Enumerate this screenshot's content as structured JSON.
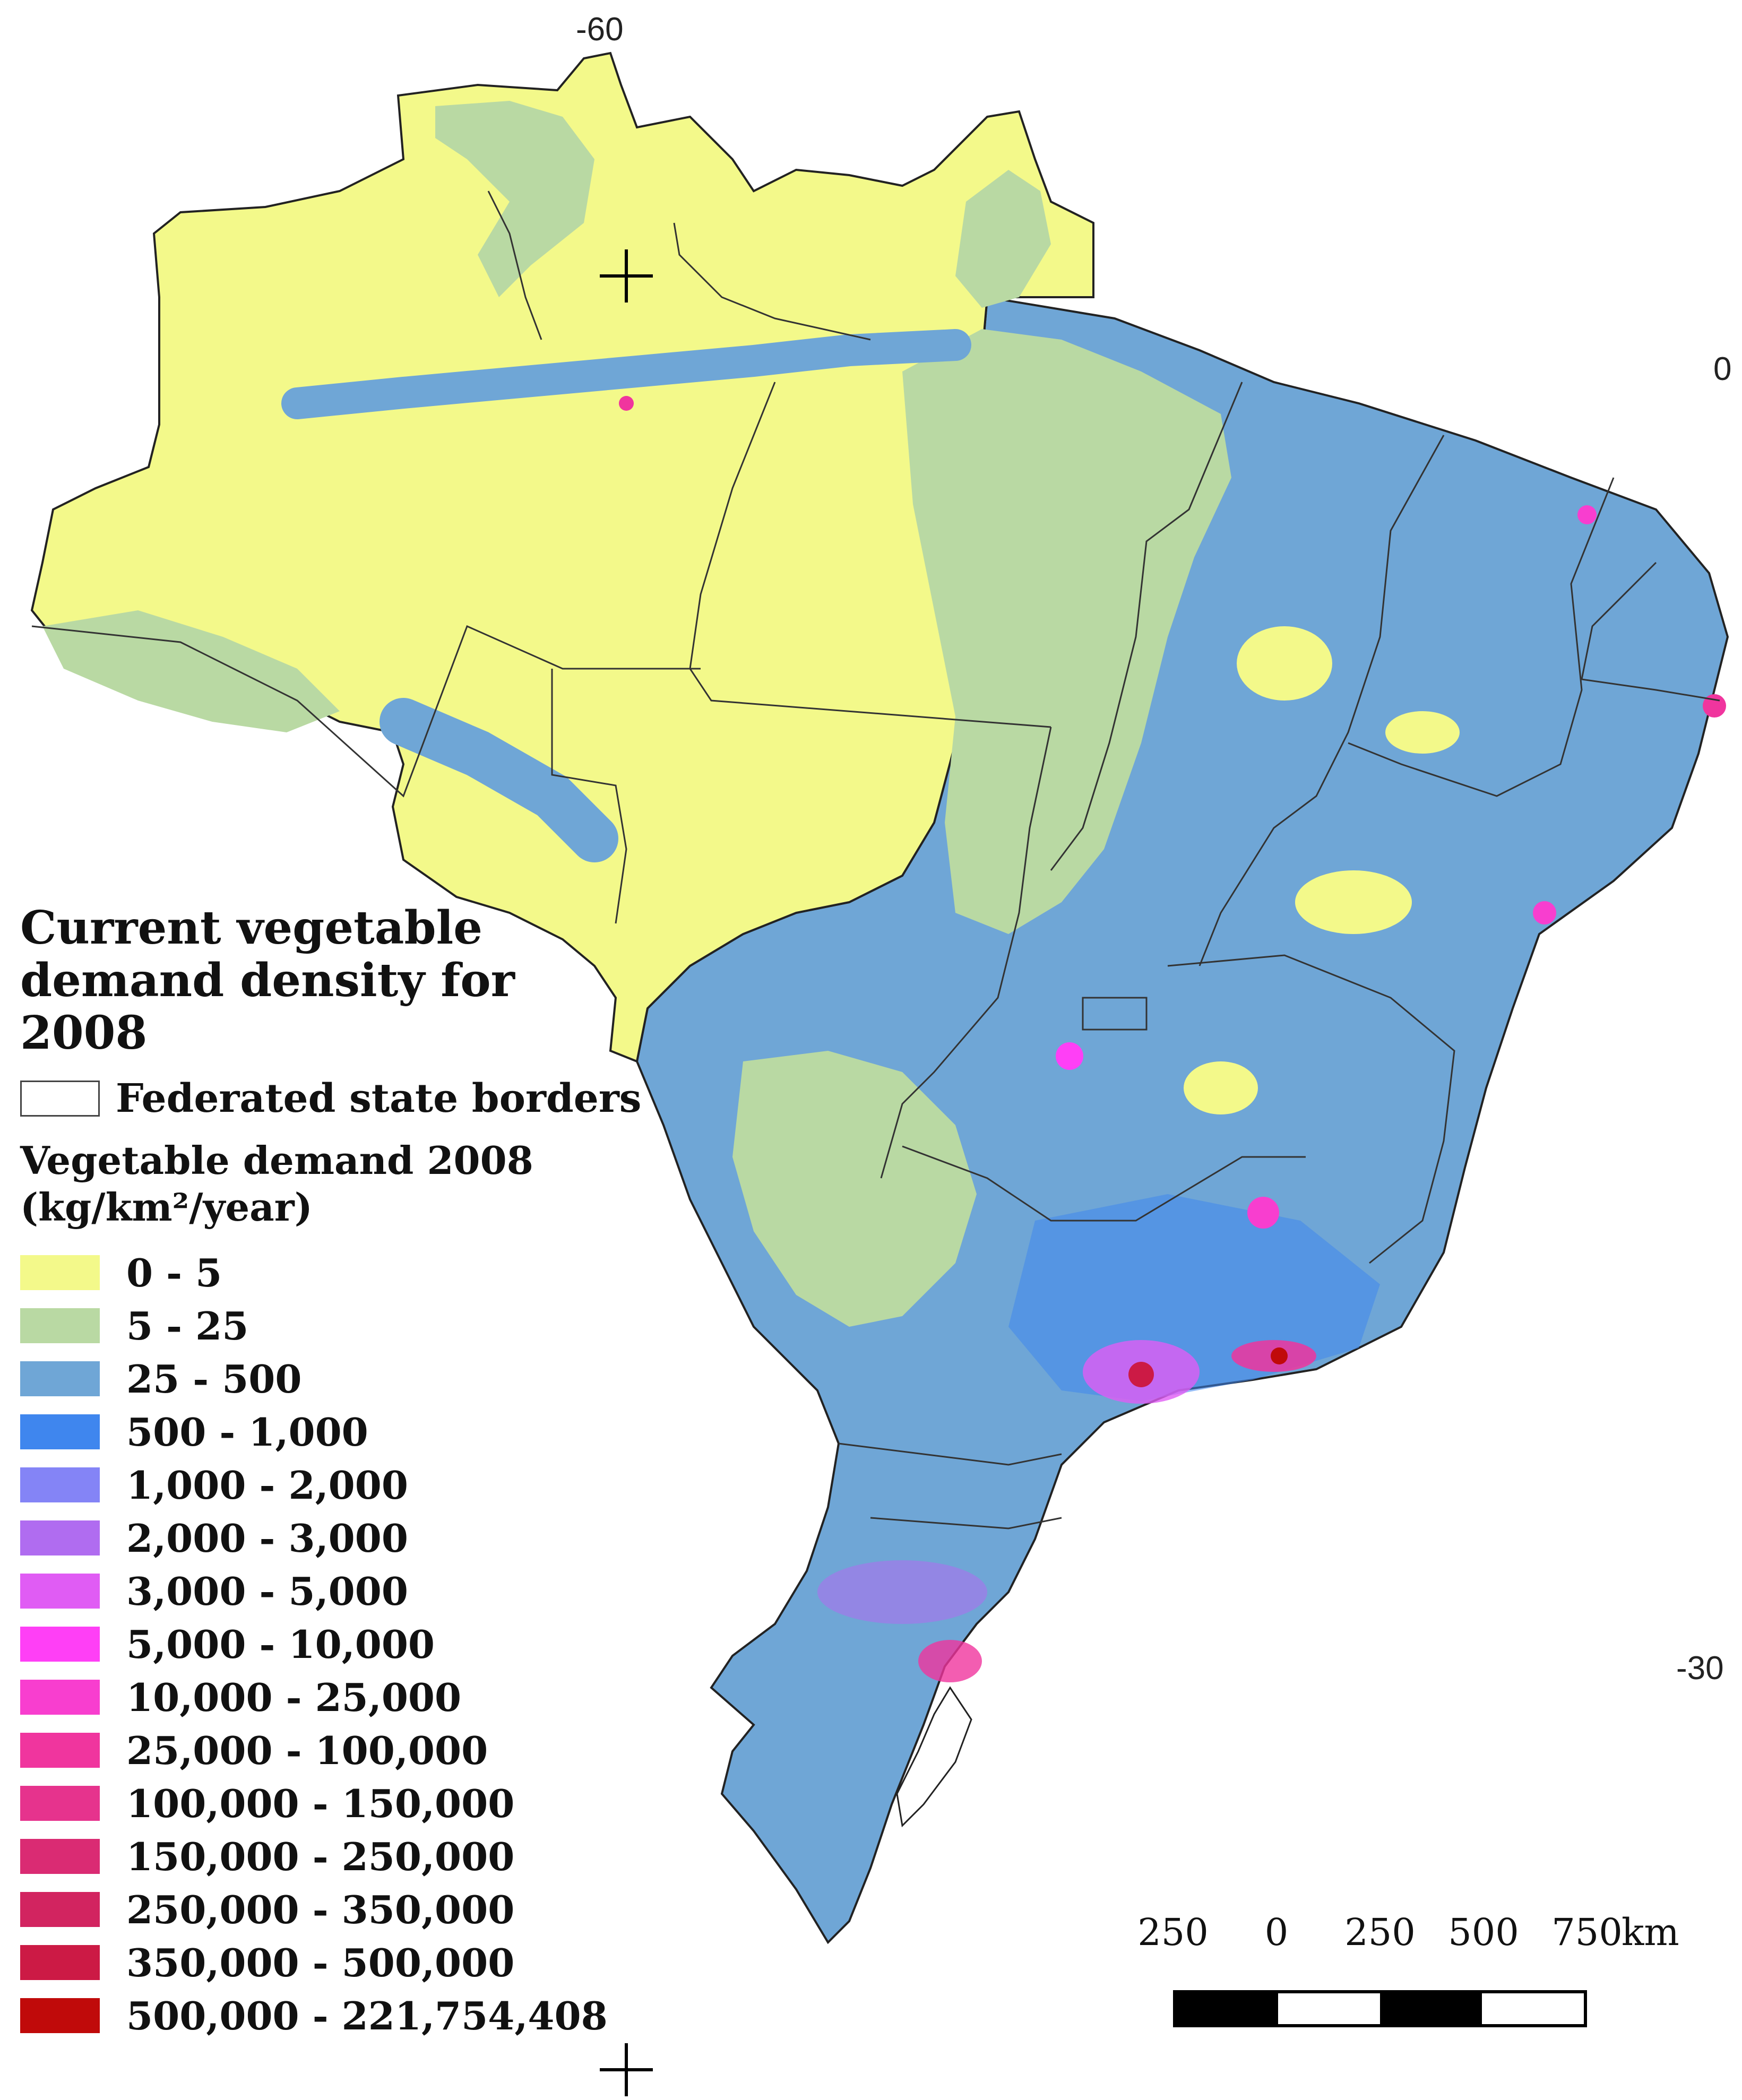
{
  "coordinates": {
    "lon_top": "-60",
    "lat_zero": "0",
    "lat_minus30": "-30"
  },
  "legend": {
    "title": "Current vegetable demand density for 2008",
    "border_label": "Federated state borders",
    "subtitle": "Vegetable demand 2008 (kg/km²/year)",
    "classes": [
      {
        "label": "0 - 5",
        "color": "#f3f98a"
      },
      {
        "label": "5 - 25",
        "color": "#b9d9a3"
      },
      {
        "label": "25 - 500",
        "color": "#6fa6d6"
      },
      {
        "label": "500 - 1,000",
        "color": "#3f86ee"
      },
      {
        "label": "1,000 - 2,000",
        "color": "#8484f6"
      },
      {
        "label": "2,000 - 3,000",
        "color": "#b06cf0"
      },
      {
        "label": "3,000 - 5,000",
        "color": "#e05cf4"
      },
      {
        "label": "5,000 - 10,000",
        "color": "#ff3ff6"
      },
      {
        "label": "10,000 - 25,000",
        "color": "#f83ecf"
      },
      {
        "label": "25,000 - 100,000",
        "color": "#f0359e"
      },
      {
        "label": "100,000 - 150,000",
        "color": "#e6338d"
      },
      {
        "label": "150,000 - 250,000",
        "color": "#da2b73"
      },
      {
        "label": "250,000 - 350,000",
        "color": "#d22460"
      },
      {
        "label": "350,000 - 500,000",
        "color": "#cc1a45"
      },
      {
        "label": "500,000 - 221,754,408",
        "color": "#c00a0a"
      }
    ]
  },
  "scalebar": {
    "ticks": [
      "250",
      "0",
      "250",
      "500",
      "750"
    ],
    "unit": "km"
  }
}
